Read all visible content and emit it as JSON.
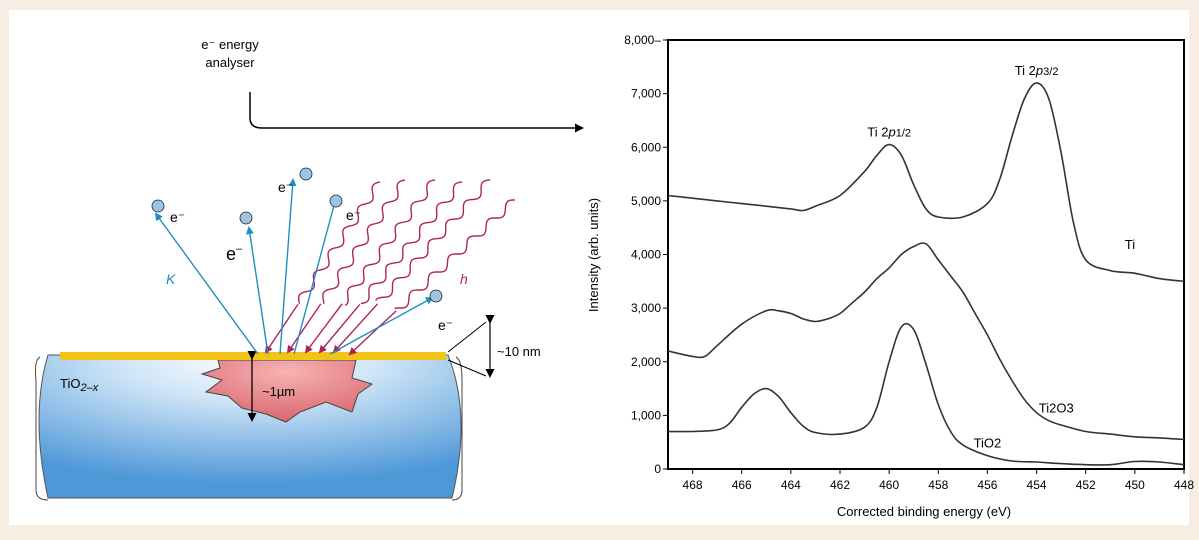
{
  "diagram": {
    "analyser_line1": "e⁻ energy",
    "analyser_line2": "analyser",
    "electron_label": "e⁻",
    "electron_large": "e",
    "electron_large_sup": "–",
    "k_label": "K",
    "h_label": "h",
    "material": "TiO",
    "material_sub": "2–x",
    "depth_surface": "~10 nm",
    "depth_bulk": "~1µm"
  },
  "chart_data": {
    "type": "line",
    "xlabel": "Corrected binding energy (eV)",
    "ylabel": "Intensity (arb. units)",
    "xlim": [
      469,
      448
    ],
    "ylim": [
      0,
      8000
    ],
    "x_ticks": [
      {
        "v": 468,
        "t": "468"
      },
      {
        "v": 466,
        "t": "466"
      },
      {
        "v": 464,
        "t": "464"
      },
      {
        "v": 462,
        "t": "462"
      },
      {
        "v": 460,
        "t": "460"
      },
      {
        "v": 458,
        "t": "458"
      },
      {
        "v": 456,
        "t": "456"
      },
      {
        "v": 454,
        "t": "454"
      },
      {
        "v": 452,
        "t": "452"
      },
      {
        "v": 450,
        "t": "450"
      },
      {
        "v": 448,
        "t": "448"
      }
    ],
    "y_ticks": [
      {
        "v": 0,
        "t": "0"
      },
      {
        "v": 1000,
        "t": "1,000"
      },
      {
        "v": 2000,
        "t": "2,000"
      },
      {
        "v": 3000,
        "t": "3,000"
      },
      {
        "v": 4000,
        "t": "4,000"
      },
      {
        "v": 5000,
        "t": "5,000"
      },
      {
        "v": 6000,
        "t": "6,000"
      },
      {
        "v": 7000,
        "t": "7,000"
      },
      {
        "v": 8000,
        "t": "8,000–"
      }
    ],
    "series": [
      {
        "name": "Ti",
        "x": [
          469,
          468,
          467,
          466,
          465,
          464,
          463.5,
          463,
          462,
          461,
          460.5,
          460,
          459.5,
          459,
          458.5,
          458,
          457,
          456,
          455.5,
          455,
          454.5,
          454,
          453.5,
          453,
          452.5,
          452,
          451,
          450,
          449,
          448
        ],
        "y": [
          5100,
          5050,
          5000,
          4950,
          4900,
          4850,
          4820,
          4900,
          5100,
          5550,
          5850,
          6050,
          5850,
          5300,
          4850,
          4700,
          4700,
          4950,
          5400,
          6200,
          6900,
          7200,
          6900,
          5900,
          4600,
          3900,
          3700,
          3650,
          3550,
          3500
        ]
      },
      {
        "name": "Ti2O3",
        "x": [
          469,
          468,
          467.5,
          467,
          466,
          465,
          464.5,
          464,
          463.5,
          463,
          462.5,
          462,
          461.5,
          461,
          460.5,
          460,
          459.5,
          459,
          458.5,
          458,
          457.5,
          457,
          456.5,
          456,
          455.5,
          455,
          454.5,
          454,
          453.5,
          453,
          452,
          451,
          450,
          449,
          448
        ],
        "y": [
          2200,
          2100,
          2100,
          2300,
          2700,
          2950,
          2950,
          2900,
          2800,
          2750,
          2800,
          2900,
          3100,
          3300,
          3550,
          3750,
          4000,
          4150,
          4200,
          3900,
          3600,
          3300,
          2900,
          2500,
          2050,
          1650,
          1300,
          1050,
          900,
          820,
          700,
          650,
          600,
          580,
          550
        ]
      },
      {
        "name": "TiO2",
        "x": [
          469,
          468,
          467,
          466.5,
          466,
          465.5,
          465,
          464.5,
          464,
          463.5,
          463,
          462,
          461,
          460.5,
          460,
          459.5,
          459,
          458.5,
          458,
          457.5,
          457,
          456,
          455,
          454,
          453,
          452,
          451,
          450,
          449,
          448
        ],
        "y": [
          700,
          700,
          730,
          850,
          1150,
          1400,
          1500,
          1350,
          1050,
          800,
          680,
          650,
          780,
          1150,
          2000,
          2650,
          2600,
          1950,
          1200,
          700,
          450,
          250,
          150,
          130,
          100,
          80,
          80,
          140,
          130,
          80
        ]
      }
    ],
    "annotations": [
      {
        "text": "Ti 2",
        "em": "p",
        "sub": "1/2",
        "x": 460,
        "y": 6050
      },
      {
        "text": "Ti 2",
        "em": "p",
        "sub": "3/2",
        "x": 454,
        "y": 7200
      },
      {
        "text": "Ti",
        "sub": "",
        "x": 450.2,
        "y": 3950,
        "series": "Ti"
      },
      {
        "text": "Ti",
        "sub": "2O3",
        "x": 453.2,
        "y": 900,
        "series": "Ti2O3"
      },
      {
        "text": "TiO",
        "sub": "2",
        "x": 456,
        "y": 250,
        "series": "TiO2"
      }
    ],
    "grid": false,
    "legend": "none"
  },
  "colors": {
    "background": "#f8ede3",
    "panel": "#ffffff",
    "blue_ray": "#1f8fbf",
    "magenta_wave": "#b0245a",
    "gold_surface": "#f2c417",
    "sample_blue": "#5fa8e0",
    "excitation": "#e07a84"
  }
}
